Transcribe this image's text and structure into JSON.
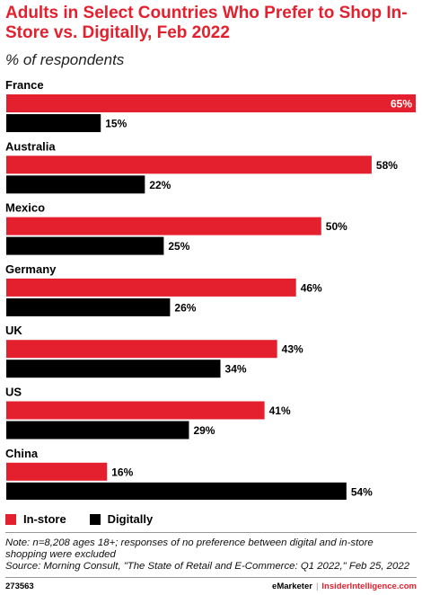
{
  "header": {
    "title": "Adults in Select Countries Who Prefer to Shop In-Store vs. Digitally, Feb 2022",
    "subtitle": "% of respondents"
  },
  "colors": {
    "instore": "#e4202e",
    "digitally": "#000000"
  },
  "legend": {
    "instore": "In-store",
    "digitally": "Digitally"
  },
  "chart_data": {
    "type": "bar",
    "orientation": "horizontal",
    "categories": [
      "France",
      "Australia",
      "Mexico",
      "Germany",
      "UK",
      "US",
      "China"
    ],
    "series": [
      {
        "name": "In-store",
        "values": [
          65,
          58,
          50,
          46,
          43,
          41,
          16
        ]
      },
      {
        "name": "Digitally",
        "values": [
          15,
          22,
          25,
          26,
          34,
          29,
          54
        ]
      }
    ],
    "value_suffix": "%",
    "xlim": [
      0,
      65
    ],
    "legend_position": "bottom-left",
    "grid": false
  },
  "footer": {
    "note": "Note: n=8,208 ages 18+; responses of no preference between digital and in-store shopping were excluded",
    "source": "Source: Morning Consult, \"The State of Retail and E-Commerce: Q1 2022,\" Feb 25, 2022",
    "id": "273563",
    "brand_left": "eMarketer",
    "brand_sep": "|",
    "brand_right": "InsiderIntelligence.com"
  }
}
